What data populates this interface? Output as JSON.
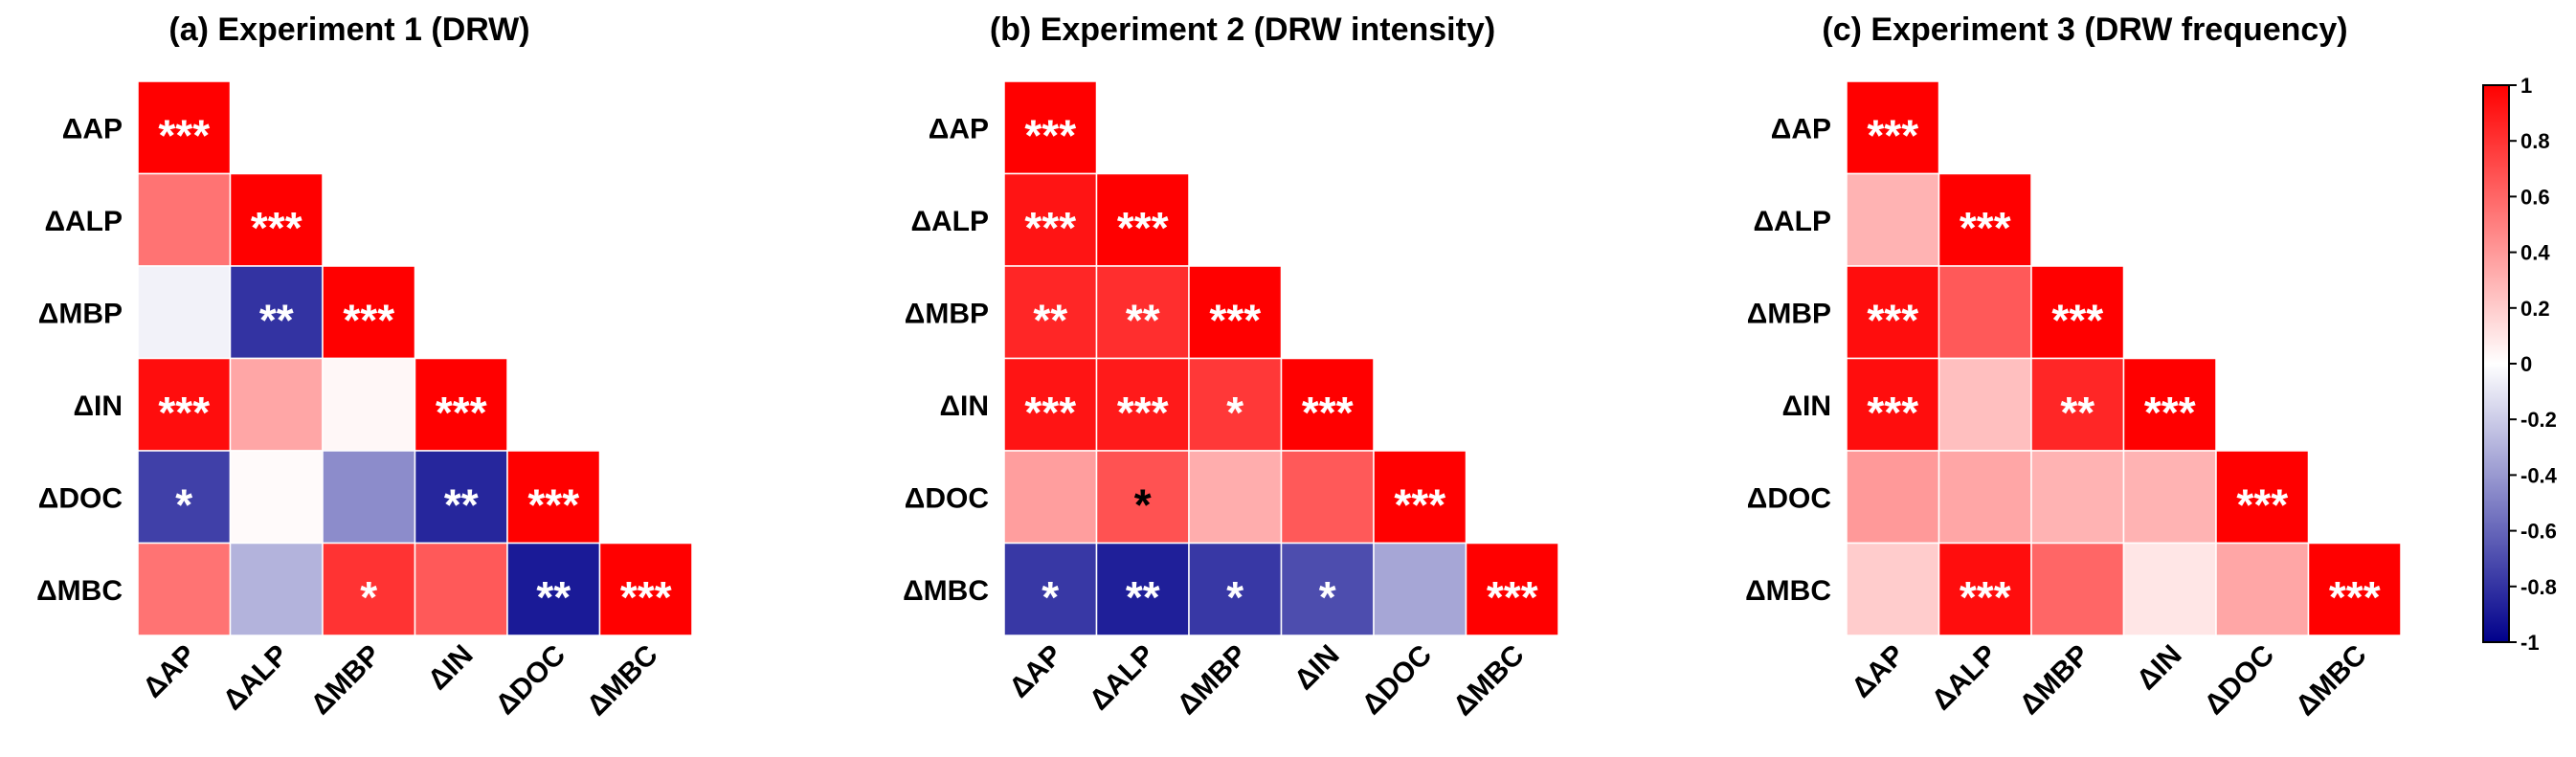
{
  "chart_data": [
    {
      "type": "heatmap",
      "title": "(a) Experiment 1 (DRW)",
      "variables": [
        "ΔAP",
        "ΔALP",
        "ΔMBP",
        "ΔIN",
        "ΔDOC",
        "ΔMBC"
      ],
      "matrix": [
        [
          1.0
        ],
        [
          0.55,
          1.0
        ],
        [
          -0.05,
          -0.8,
          1.0
        ],
        [
          0.95,
          0.35,
          0.03,
          1.0
        ],
        [
          -0.75,
          0.02,
          -0.45,
          -0.85,
          1.0
        ],
        [
          0.55,
          -0.3,
          0.8,
          0.65,
          -0.9,
          1.0
        ]
      ],
      "stars": [
        [
          "***"
        ],
        [
          "",
          "***"
        ],
        [
          "",
          "**",
          "***"
        ],
        [
          "***",
          "",
          "",
          "***"
        ],
        [
          "*",
          "",
          "",
          "**",
          "***"
        ],
        [
          "",
          "",
          "*",
          "",
          "**",
          "***"
        ]
      ]
    },
    {
      "type": "heatmap",
      "title": "(b) Experiment 2 (DRW intensity)",
      "variables": [
        "ΔAP",
        "ΔALP",
        "ΔMBP",
        "ΔIN",
        "ΔDOC",
        "ΔMBC"
      ],
      "matrix": [
        [
          1.0
        ],
        [
          0.92,
          1.0
        ],
        [
          0.85,
          0.82,
          1.0
        ],
        [
          0.92,
          0.9,
          0.78,
          1.0
        ],
        [
          0.38,
          0.68,
          0.32,
          0.65,
          1.0
        ],
        [
          -0.78,
          -0.88,
          -0.78,
          -0.7,
          -0.35,
          1.0
        ]
      ],
      "stars": [
        [
          "***"
        ],
        [
          "***",
          "***"
        ],
        [
          "**",
          "**",
          "***"
        ],
        [
          "***",
          "***",
          "*",
          "***"
        ],
        [
          "",
          "*",
          "",
          "",
          "***"
        ],
        [
          "*",
          "**",
          "*",
          "*",
          "",
          "***"
        ]
      ]
    },
    {
      "type": "heatmap",
      "title": "(c) Experiment 3 (DRW frequency)",
      "variables": [
        "ΔAP",
        "ΔALP",
        "ΔMBP",
        "ΔIN",
        "ΔDOC",
        "ΔMBC"
      ],
      "matrix": [
        [
          1.0
        ],
        [
          0.3,
          1.0
        ],
        [
          0.95,
          0.65,
          1.0
        ],
        [
          0.95,
          0.25,
          0.85,
          1.0
        ],
        [
          0.4,
          0.35,
          0.3,
          0.3,
          1.0
        ],
        [
          0.2,
          0.95,
          0.6,
          0.1,
          0.35,
          1.0
        ]
      ],
      "stars": [
        [
          "***"
        ],
        [
          "",
          "***"
        ],
        [
          "***",
          "",
          "***"
        ],
        [
          "***",
          "",
          "**",
          "***"
        ],
        [
          "",
          "",
          "",
          "",
          "***"
        ],
        [
          "",
          "***",
          "",
          "",
          "",
          "***"
        ]
      ]
    }
  ],
  "colorbar": {
    "ticks": [
      "1",
      "0.8",
      "0.6",
      "0.4",
      "0.2",
      "0",
      "-0.2",
      "-0.4",
      "-0.6",
      "-0.8",
      "-1"
    ],
    "range": [
      -1,
      1
    ],
    "color_max": "#ff0000",
    "color_mid": "#ffffff",
    "color_min": "#00008b"
  }
}
